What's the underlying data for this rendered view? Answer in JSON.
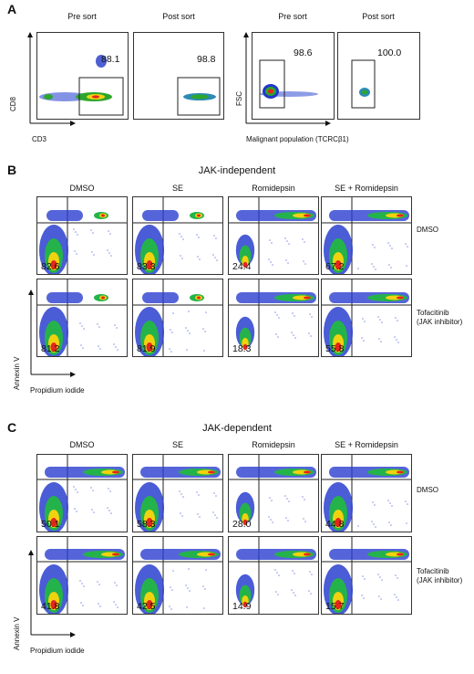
{
  "figure": {
    "panel_labels": {
      "a": "A",
      "b": "B",
      "c": "C"
    },
    "panel_a": {
      "left_headers": [
        "Pre sort",
        "Post sort"
      ],
      "right_headers": [
        "Pre sort",
        "Post sort"
      ],
      "left_values": [
        "88.1",
        "98.8"
      ],
      "right_values": [
        "98.6",
        "100.0"
      ],
      "left_xlabel": "CD3",
      "left_ylabel": "CD8",
      "right_xlabel": "Malignant population (TCRCβ1)",
      "right_ylabel": "FSC"
    },
    "panel_b": {
      "title": "JAK-independent",
      "col_headers": [
        "DMSO",
        "SE",
        "Romidepsin",
        "SE + Romidepsin"
      ],
      "row_labels": [
        "DMSO",
        "Tofacitinib",
        "(JAK inhibitor)"
      ],
      "row1_values": [
        "82.6",
        "83.3",
        "24.4",
        "67.2"
      ],
      "row2_values": [
        "81.2",
        "81.9",
        "18.3",
        "55.8"
      ],
      "xlabel": "Propidium iodide",
      "ylabel": "Annexin V"
    },
    "panel_c": {
      "title": "JAK-dependent",
      "col_headers": [
        "DMSO",
        "SE",
        "Romidepsin",
        "SE + Romidepsin"
      ],
      "row_labels": [
        "DMSO",
        "Tofacitinib",
        "(JAK inhibitor)"
      ],
      "row1_values": [
        "50.1",
        "58.3",
        "28.0",
        "44.8"
      ],
      "row2_values": [
        "41.8",
        "42.5",
        "14.9",
        "15.7"
      ],
      "xlabel": "Propidium iodide",
      "ylabel": "Annexin V"
    }
  }
}
